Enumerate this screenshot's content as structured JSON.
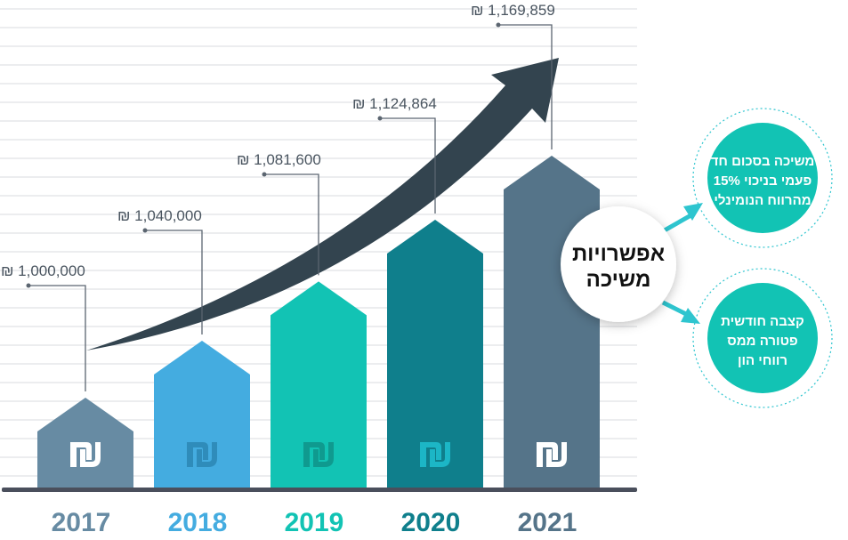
{
  "chart_data": {
    "type": "bar",
    "title": "",
    "xlabel": "",
    "ylabel": "",
    "currency_symbol": "₪",
    "categories": [
      "2017",
      "2018",
      "2019",
      "2020",
      "2021"
    ],
    "values": [
      1000000,
      1040000,
      1081600,
      1124864,
      1169859
    ],
    "value_labels": [
      "₪ 1,000,000",
      "₪ 1,040,000",
      "₪ 1,081,600",
      "₪ 1,124,864",
      "₪ 1,169,859"
    ],
    "colors": [
      "#678ba3",
      "#44ace0",
      "#12c3b4",
      "#0f7f8c",
      "#557489"
    ],
    "icon_colors": [
      "#ffffff",
      "#2f8cba",
      "#0f9a8f",
      "#1cb6c6",
      "#ffffff"
    ],
    "ylim": [
      900000,
      1200000
    ],
    "grid": true,
    "trend_arrow_color": "#33444f"
  },
  "options": {
    "center_title": [
      "אפשרויות",
      "משיכה"
    ],
    "option_1": [
      "משיכה בסכום חד",
      "פעמי בניכוי 15%",
      "מהרווח הנומינלי"
    ],
    "option_2": [
      "קצבה חודשית",
      "פטורה ממס",
      "רווחי הון"
    ],
    "accent": "#12c3b4"
  }
}
